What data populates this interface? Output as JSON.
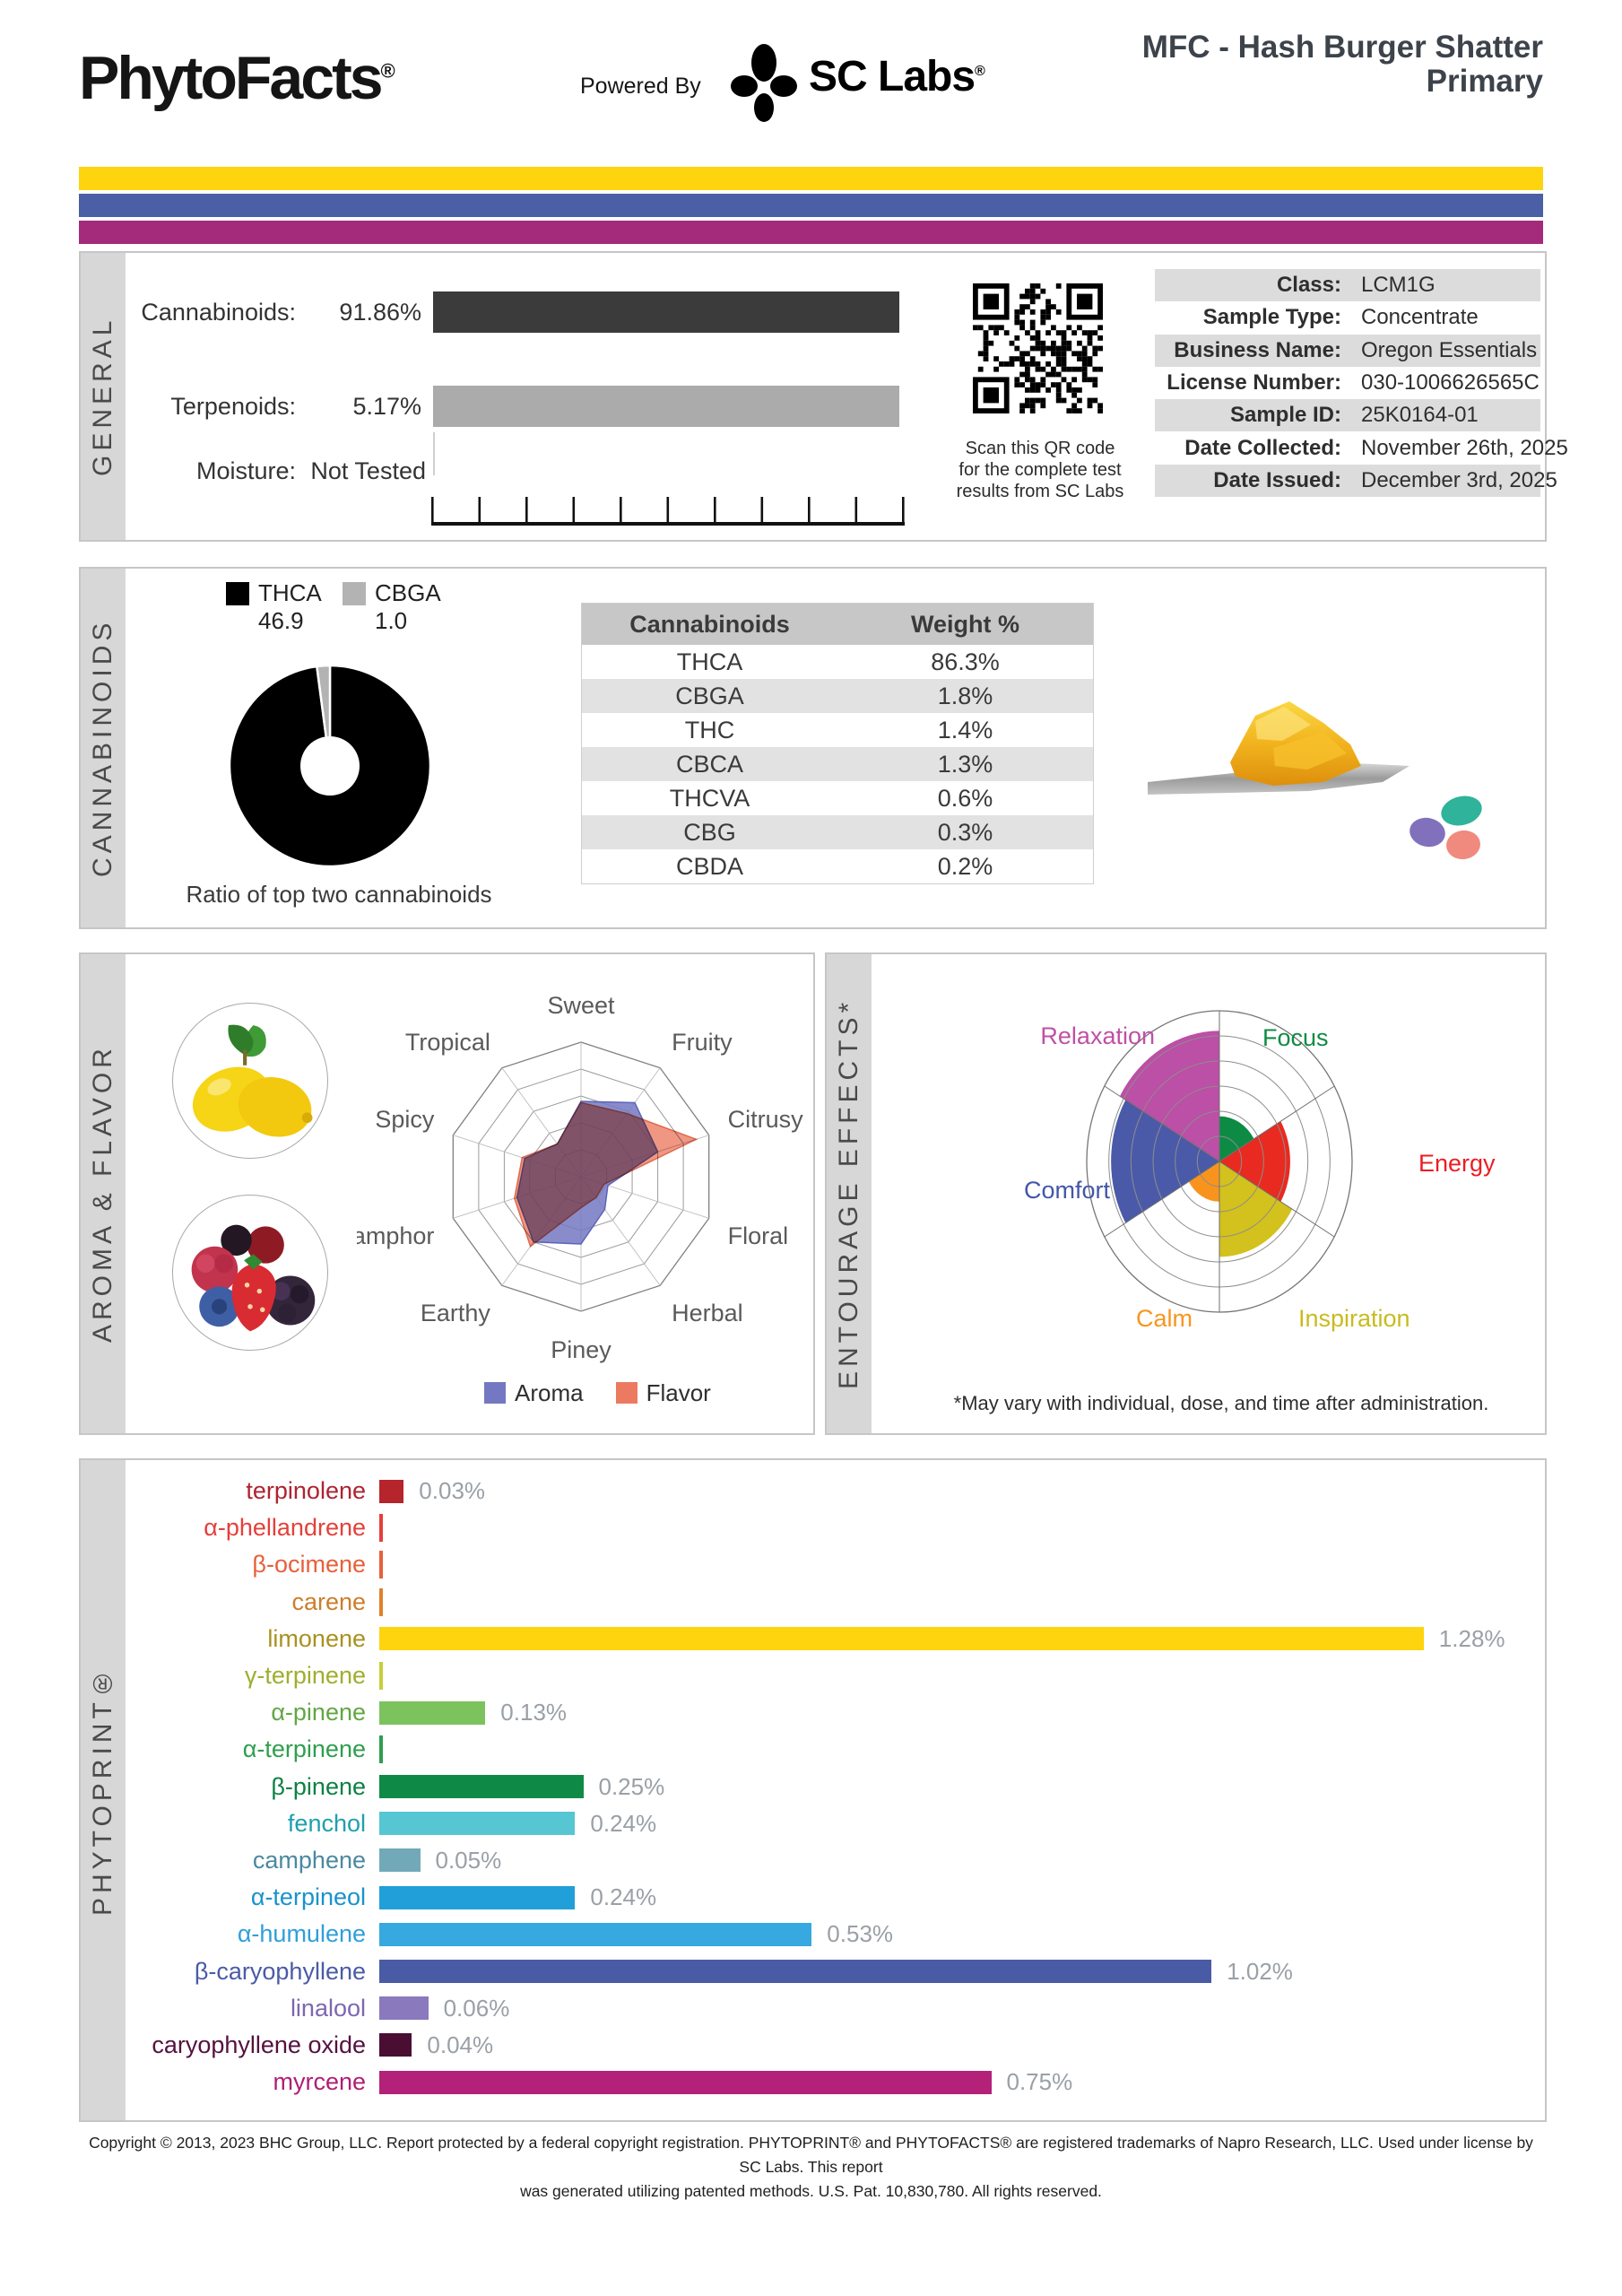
{
  "header": {
    "brand": "PhytoFacts",
    "reg": "®",
    "powered_by": "Powered By",
    "lab_name": "SC Labs",
    "title_line1": "MFC - Hash Burger Shatter",
    "title_line2": "Primary",
    "stripe_colors": [
      "#fdd40e",
      "#4a5fa5",
      "#a42a7c"
    ]
  },
  "general": {
    "label": "GENERAL",
    "metrics": [
      {
        "name": "Cannabinoids:",
        "value": "91.86%",
        "bar_color": "#3b3b3b",
        "has_bar": true
      },
      {
        "name": "Terpenoids:",
        "value": "5.17%",
        "bar_color": "#ababab",
        "has_bar": true
      },
      {
        "name": "Moisture:",
        "value": "Not Tested",
        "has_bar": false
      }
    ],
    "qr_caption_lines": [
      "Scan this QR code",
      "for the complete test",
      "results from SC Labs"
    ],
    "info": [
      {
        "label": "Class:",
        "value": "LCM1G"
      },
      {
        "label": "Sample Type:",
        "value": "Concentrate"
      },
      {
        "label": "Business Name:",
        "value": "Oregon Essentials"
      },
      {
        "label": "License Number:",
        "value": "030-1006626565C"
      },
      {
        "label": "Sample ID:",
        "value": "25K0164-01"
      },
      {
        "label": "Date Collected:",
        "value": "November 26th, 2025"
      },
      {
        "label": "Date Issued:",
        "value": "December 3rd, 2025"
      }
    ]
  },
  "cannabinoids": {
    "label": "CANNABINOIDS",
    "donut_caption": "Ratio of top two cannabinoids",
    "table_headers": [
      "Cannabinoids",
      "Weight %"
    ],
    "table_rows": [
      [
        "THCA",
        "86.3%"
      ],
      [
        "CBGA",
        "1.8%"
      ],
      [
        "THC",
        "1.4%"
      ],
      [
        "CBCA",
        "1.3%"
      ],
      [
        "THCVA",
        "0.6%"
      ],
      [
        "CBG",
        "0.3%"
      ],
      [
        "CBDA",
        "0.2%"
      ]
    ]
  },
  "aroma_flavor": {
    "label": "AROMA & FLAVOR",
    "legend": [
      {
        "name": "Aroma",
        "color": "#7478c2"
      },
      {
        "name": "Flavor",
        "color": "#ec7a61"
      }
    ]
  },
  "entourage": {
    "label": "ENTOURAGE EFFECTS*",
    "footnote": "*May vary with individual, dose, and time after administration."
  },
  "phytoprint": {
    "label": "PHYTOPRINT®"
  },
  "footer_lines": [
    "Copyright © 2013, 2023 BHC Group, LLC. Report protected by a federal copyright registration. PHYTOPRINT® and PHYTOFACTS® are registered trademarks of Napro Research, LLC. Used under license by SC Labs. This report",
    "was generated utilizing patented methods. U.S. Pat. 10,830,780. All rights reserved."
  ],
  "chart_data": [
    {
      "id": "cannabinoid-ratio-donut",
      "type": "pie",
      "variant": "donut",
      "title": "Ratio of top two cannabinoids",
      "slices": [
        {
          "label": "THCA",
          "display": "46.9",
          "value": 46.9,
          "color": "#000000"
        },
        {
          "label": "CBGA",
          "display": "1.0",
          "value": 1.0,
          "color": "#b3b3b3"
        }
      ]
    },
    {
      "id": "aroma-flavor-radar",
      "type": "radar",
      "levels": 5,
      "axes": [
        "Sweet",
        "Fruity",
        "Citrusy",
        "Floral",
        "Herbal",
        "Piney",
        "Earthy",
        "Camphor",
        "Spicy",
        "Tropical"
      ],
      "series": [
        {
          "name": "Aroma",
          "color": "#7478c2",
          "stroke": "#5d63b6",
          "values": [
            2.8,
            3.4,
            3.0,
            1.05,
            1.5,
            2.5,
            3.0,
            2.5,
            2.2,
            1.5
          ]
        },
        {
          "name": "Flavor",
          "color": "#ec7a61",
          "stroke": "#e06a4e",
          "values": [
            2.75,
            2.9,
            4.5,
            0.9,
            0.95,
            1.15,
            3.2,
            2.6,
            2.3,
            1.5
          ]
        }
      ]
    },
    {
      "id": "entourage-effects-polar",
      "type": "rose",
      "rings": 6,
      "sectors": [
        {
          "label": "Focus",
          "value": 1.8,
          "color": "#0d8b44",
          "label_color": "#108b43"
        },
        {
          "label": "Energy",
          "value": 3.2,
          "color": "#e92a20",
          "label_color": "#ed1c24"
        },
        {
          "label": "Inspiration",
          "value": 3.8,
          "color": "#d3c11d",
          "label_color": "#c8bb20"
        },
        {
          "label": "Calm",
          "value": 1.6,
          "color": "#f8941d",
          "label_color": "#f8951e"
        },
        {
          "label": "Comfort",
          "value": 4.9,
          "color": "#4a5aa8",
          "label_color": "#4456a9"
        },
        {
          "label": "Relaxation",
          "value": 5.2,
          "color": "#bc4fa6",
          "label_color": "#c050a6"
        }
      ]
    },
    {
      "id": "terpene-bars",
      "type": "bar",
      "unit": "%",
      "xlim": [
        0,
        1.4
      ],
      "bars": [
        {
          "name": "terpinolene",
          "value": 0.03,
          "display": "0.03%",
          "label_color": "#ae2330",
          "bar_color": "#b6242c"
        },
        {
          "name": "α-phellandrene",
          "value": 0,
          "display": "",
          "label_color": "#e4403a",
          "bar_color": "#e4403a"
        },
        {
          "name": "β-ocimene",
          "value": 0,
          "display": "",
          "label_color": "#e7603b",
          "bar_color": "#e7603b"
        },
        {
          "name": "carene",
          "value": 0,
          "display": "",
          "label_color": "#cd7d2c",
          "bar_color": "#e0812c"
        },
        {
          "name": "limonene",
          "value": 1.28,
          "display": "1.28%",
          "label_color": "#a8921f",
          "bar_color": "#fdd40e"
        },
        {
          "name": "γ-terpinene",
          "value": 0,
          "display": "",
          "label_color": "#9fae2e",
          "bar_color": "#c6cf3a"
        },
        {
          "name": "α-pinene",
          "value": 0.13,
          "display": "0.13%",
          "label_color": "#61a743",
          "bar_color": "#7cc35e"
        },
        {
          "name": "α-terpinene",
          "value": 0,
          "display": "",
          "label_color": "#2f9e4e",
          "bar_color": "#2f9e4e"
        },
        {
          "name": "β-pinene",
          "value": 0.25,
          "display": "0.25%",
          "label_color": "#0e8044",
          "bar_color": "#0e8a46"
        },
        {
          "name": "fenchol",
          "value": 0.24,
          "display": "0.24%",
          "label_color": "#1f9fae",
          "bar_color": "#56c6d3"
        },
        {
          "name": "camphene",
          "value": 0.05,
          "display": "0.05%",
          "label_color": "#4b89a0",
          "bar_color": "#72a9b8"
        },
        {
          "name": "α-terpineol",
          "value": 0.24,
          "display": "0.24%",
          "label_color": "#1893cd",
          "bar_color": "#219fd9"
        },
        {
          "name": "α-humulene",
          "value": 0.53,
          "display": "0.53%",
          "label_color": "#2f9fda",
          "bar_color": "#38a8e0"
        },
        {
          "name": "β-caryophyllene",
          "value": 1.02,
          "display": "1.02%",
          "label_color": "#4a5ba6",
          "bar_color": "#4a5ba6"
        },
        {
          "name": "linalool",
          "value": 0.06,
          "display": "0.06%",
          "label_color": "#7e66b1",
          "bar_color": "#8b79bd"
        },
        {
          "name": "caryophyllene oxide",
          "value": 0.04,
          "display": "0.04%",
          "label_color": "#551140",
          "bar_color": "#4b0e33"
        },
        {
          "name": "myrcene",
          "value": 0.75,
          "display": "0.75%",
          "label_color": "#b01e73",
          "bar_color": "#b42178"
        }
      ]
    }
  ]
}
